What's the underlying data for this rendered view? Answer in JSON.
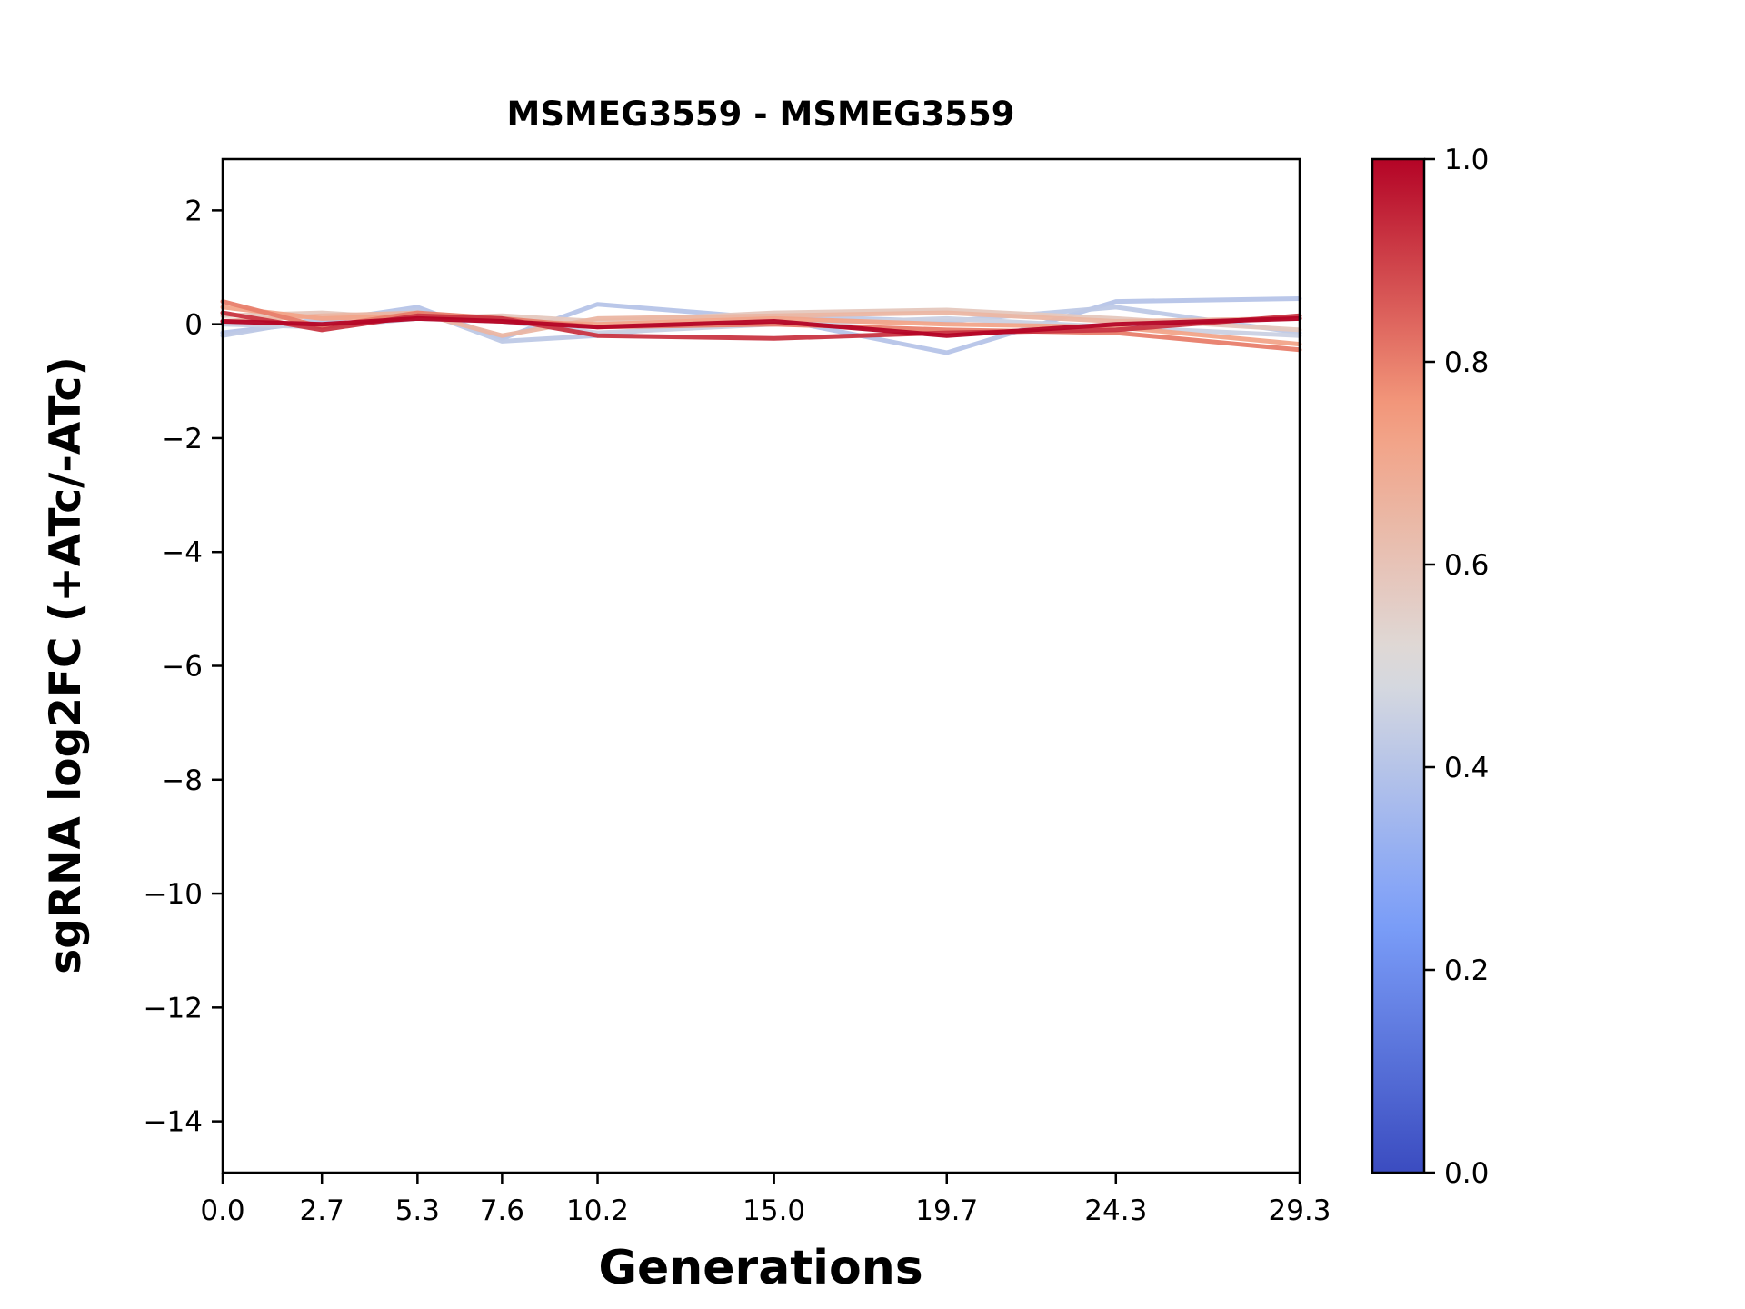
{
  "figure": {
    "background": "#ffffff",
    "axis_color": "#000000"
  },
  "chart_data": {
    "type": "line",
    "title": "MSMEG3559 - MSMEG3559",
    "xlabel": "Generations",
    "ylabel": "sgRNA log2FC (+ATc/-ATc)",
    "x": [
      0.0,
      2.7,
      5.3,
      7.6,
      10.2,
      15.0,
      19.7,
      24.3,
      29.3
    ],
    "x_tick_labels": [
      "0.0",
      "2.7",
      "5.3",
      "7.6",
      "10.2",
      "15.0",
      "19.7",
      "24.3",
      "29.3"
    ],
    "xlim": [
      0.0,
      29.3
    ],
    "ylim": [
      -14.9,
      2.9
    ],
    "y_ticks": [
      2,
      0,
      -2,
      -4,
      -6,
      -8,
      -10,
      -12,
      -14
    ],
    "y_tick_labels": [
      "2",
      "0",
      "−2",
      "−4",
      "−6",
      "−8",
      "−10",
      "−12",
      "−14"
    ],
    "grid": false,
    "legend": "none",
    "line_width": 5,
    "series": [
      {
        "colormap_value": 0.4,
        "values": [
          -0.15,
          0.05,
          0.3,
          -0.25,
          0.35,
          0.1,
          -0.5,
          0.4,
          0.45
        ]
      },
      {
        "colormap_value": 0.42,
        "values": [
          -0.2,
          0.1,
          0.25,
          -0.3,
          -0.2,
          0.15,
          0.05,
          0.3,
          -0.15
        ]
      },
      {
        "colormap_value": 0.45,
        "values": [
          0.0,
          -0.05,
          0.1,
          0.05,
          -0.15,
          0.0,
          0.1,
          -0.05,
          -0.2
        ]
      },
      {
        "colormap_value": 0.58,
        "values": [
          0.15,
          0.2,
          0.1,
          0.15,
          0.05,
          0.2,
          0.25,
          0.1,
          -0.1
        ]
      },
      {
        "colormap_value": 0.65,
        "values": [
          0.05,
          0.15,
          0.2,
          -0.2,
          0.1,
          0.15,
          0.2,
          0.05,
          0.1
        ]
      },
      {
        "colormap_value": 0.72,
        "values": [
          0.3,
          0.1,
          0.15,
          0.05,
          0.0,
          0.1,
          0.0,
          -0.05,
          -0.35
        ]
      },
      {
        "colormap_value": 0.8,
        "values": [
          0.4,
          -0.05,
          0.2,
          0.1,
          -0.05,
          0.0,
          -0.1,
          -0.15,
          -0.45
        ]
      },
      {
        "colormap_value": 0.92,
        "values": [
          0.2,
          -0.1,
          0.15,
          0.1,
          -0.2,
          -0.25,
          -0.15,
          -0.1,
          0.15
        ]
      },
      {
        "colormap_value": 1.0,
        "values": [
          0.05,
          0.0,
          0.1,
          0.05,
          -0.05,
          0.05,
          -0.2,
          0.0,
          0.1
        ]
      }
    ],
    "colorbar": {
      "min": 0.0,
      "max": 1.0,
      "tick_labels": [
        "0.0",
        "0.2",
        "0.4",
        "0.6",
        "0.8",
        "1.0"
      ],
      "colormap": "coolwarm",
      "anchors": [
        [
          "0.00",
          "#3B4CC0"
        ],
        [
          "0.25",
          "#7C9FF9"
        ],
        [
          "0.50",
          "#DDDDDD"
        ],
        [
          "0.75",
          "#F59C7D"
        ],
        [
          "1.00",
          "#B40426"
        ]
      ]
    }
  }
}
